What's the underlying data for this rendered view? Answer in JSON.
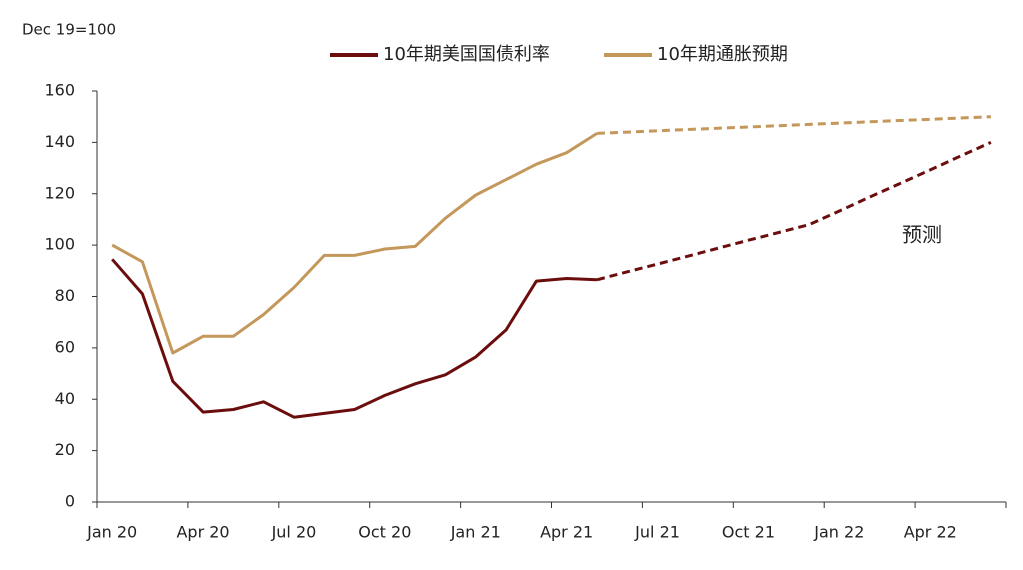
{
  "chart_data": {
    "type": "line",
    "y_label": "Dec 19=100",
    "categories": [
      "Jan 20",
      null,
      null,
      "Apr 20",
      null,
      null,
      "Jul 20",
      null,
      null,
      "Oct 20",
      null,
      null,
      "Jan 21",
      null,
      null,
      "Apr 21",
      null,
      null,
      "Jul 21",
      null,
      null,
      "Oct 21",
      null,
      null,
      "Jan 22",
      null,
      null,
      "Apr 22",
      null,
      null
    ],
    "series": [
      {
        "name": "10年期美国国债利率",
        "color": "#6b0d0d",
        "values": [
          94.5,
          81,
          47,
          35,
          36,
          39,
          33,
          34.5,
          36,
          41.5,
          46,
          49.5,
          56.5,
          67,
          86,
          87,
          86.5,
          null,
          null,
          null,
          null,
          null,
          null,
          null,
          null,
          null,
          null,
          null,
          null,
          null
        ],
        "forecast_values": [
          null,
          null,
          null,
          null,
          null,
          null,
          null,
          null,
          null,
          null,
          null,
          null,
          null,
          null,
          null,
          null,
          86.5,
          89.6,
          92.6,
          95.7,
          98.8,
          101.9,
          104.9,
          108,
          113.3,
          118.7,
          124,
          129.3,
          134.7,
          140
        ]
      },
      {
        "name": "10年期通胀预期",
        "color": "#c4975a",
        "values": [
          100,
          93.5,
          58,
          64.5,
          64.5,
          73,
          83.5,
          96,
          96,
          98.5,
          99.5,
          110.5,
          119.5,
          125.5,
          131.5,
          136,
          143.5,
          null,
          null,
          null,
          null,
          null,
          null,
          null,
          null,
          null,
          null,
          null,
          null,
          null
        ],
        "forecast_values": [
          null,
          null,
          null,
          null,
          null,
          null,
          null,
          null,
          null,
          null,
          null,
          null,
          null,
          null,
          null,
          null,
          143.5,
          144,
          144.5,
          145,
          145.5,
          146,
          146.5,
          147,
          147.5,
          148,
          148.5,
          149,
          149.5,
          150
        ]
      }
    ],
    "forecast_style": "dashed",
    "annotations": [
      {
        "text": "预测"
      }
    ],
    "ylim": [
      0,
      160
    ],
    "yticks": [
      0,
      20,
      40,
      60,
      80,
      100,
      120,
      140,
      160
    ],
    "grid": false
  }
}
